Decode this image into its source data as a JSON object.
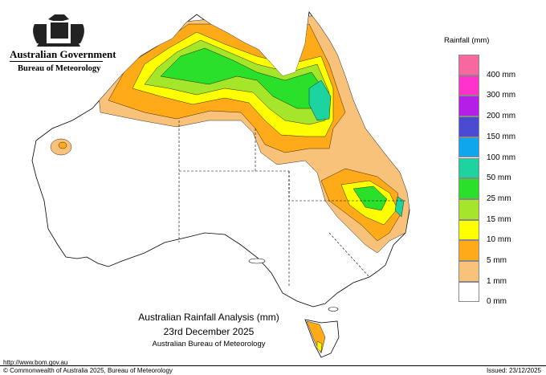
{
  "header": {
    "government": "Australian Government",
    "bureau": "Bureau of Meteorology"
  },
  "legend": {
    "title": "Rainfall (mm)",
    "items": [
      {
        "label": "",
        "color": "#f768a1"
      },
      {
        "label": "400 mm",
        "color": "#ff33cc"
      },
      {
        "label": "300 mm",
        "color": "#b41ee6"
      },
      {
        "label": "200 mm",
        "color": "#4b4bd2"
      },
      {
        "label": "150 mm",
        "color": "#10a6ee"
      },
      {
        "label": "100 mm",
        "color": "#1dd4a0"
      },
      {
        "label": "50 mm",
        "color": "#2ae02a"
      },
      {
        "label": "25 mm",
        "color": "#a6e62a"
      },
      {
        "label": "15 mm",
        "color": "#ffff00"
      },
      {
        "label": "10 mm",
        "color": "#ffaa18"
      },
      {
        "label": "5 mm",
        "color": "#f9c27a"
      },
      {
        "label": "1 mm",
        "color": "#ffffff"
      },
      {
        "label": "0 mm",
        "color": ""
      }
    ]
  },
  "map_colors": {
    "rain_1": "#f9c27a",
    "rain_5": "#ffaa18",
    "rain_10": "#ffff00",
    "rain_15": "#a6e62a",
    "rain_25": "#2ae02a",
    "rain_50": "#1dd4a0",
    "land": "#ffffff",
    "border": "#000000"
  },
  "titles": {
    "line1": "Australian Rainfall Analysis (mm)",
    "line2": "23rd December 2025",
    "line3": "Australian Bureau of Meteorology"
  },
  "footer": {
    "url": "http://www.bom.gov.au",
    "copyright": "© Commonwealth of Australia 2025, Bureau of Meteorology",
    "issued": "Issued: 23/12/2025"
  }
}
